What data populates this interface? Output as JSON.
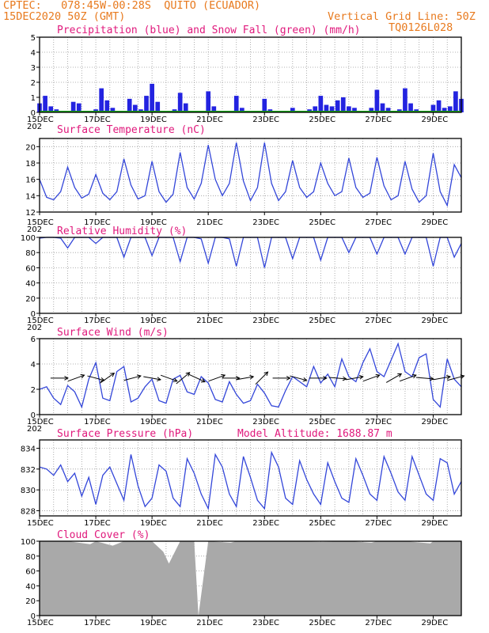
{
  "header": {
    "source": "CPTEC:",
    "location": "078:45W-00:28S  QUITO (ECUADOR)",
    "run": "15DEC2020 50Z (GMT)",
    "grid_note": "Vertical Grid Line: 50Z",
    "code": "TQ0126L028"
  },
  "x_axis": {
    "first_label": "15DEC",
    "labels": [
      "15DEC",
      "17DEC",
      "19DEC",
      "21DEC",
      "23DEC",
      "25DEC",
      "27DEC",
      "29DEC"
    ],
    "year_fragment": "202"
  },
  "colors": {
    "precip": "#2323e0",
    "snow": "#1aa31a",
    "line": "#3346d9",
    "title": "#e0197c",
    "header": "#e87a1e",
    "cloud": "#a9a9a9"
  },
  "chart_data": [
    {
      "type": "bar",
      "title": "Precipitation (blue) and Snow Fall (green) (mm/h)",
      "ylim": [
        0,
        5
      ],
      "yticks": [
        "0",
        "1",
        "2",
        "3",
        "4",
        "5"
      ],
      "x_days": [
        15.0,
        15.2,
        15.4,
        15.6,
        15.8,
        16.0,
        16.2,
        16.4,
        16.6,
        16.8,
        17.0,
        17.2,
        17.4,
        17.6,
        17.8,
        18.0,
        18.2,
        18.4,
        18.6,
        18.8,
        19.0,
        19.2,
        19.4,
        19.6,
        19.8,
        20.0,
        20.2,
        20.4,
        20.6,
        20.8,
        21.0,
        21.2,
        21.4,
        21.6,
        21.8,
        22.0,
        22.2,
        22.4,
        22.6,
        22.8,
        23.0,
        23.2,
        23.4,
        23.6,
        23.8,
        24.0,
        24.2,
        24.4,
        24.6,
        24.8,
        25.0,
        25.2,
        25.4,
        25.6,
        25.8,
        26.0,
        26.2,
        26.4,
        26.6,
        26.8,
        27.0,
        27.2,
        27.4,
        27.6,
        27.8,
        28.0,
        28.2,
        28.4,
        28.6,
        28.8,
        29.0,
        29.2,
        29.4,
        29.6,
        29.8,
        30.0
      ],
      "series": [
        {
          "name": "Precipitation",
          "values": [
            0.6,
            1.1,
            0.4,
            0.2,
            0.0,
            0.1,
            0.7,
            0.6,
            0.1,
            0.0,
            0.2,
            1.6,
            0.8,
            0.3,
            0.0,
            0.1,
            0.9,
            0.5,
            0.2,
            1.1,
            1.9,
            0.7,
            0.1,
            0.0,
            0.2,
            1.3,
            0.6,
            0.1,
            0.0,
            0.1,
            1.4,
            0.4,
            0.1,
            0.0,
            0.1,
            1.1,
            0.3,
            0.0,
            0.0,
            0.1,
            0.9,
            0.2,
            0.0,
            0.0,
            0.1,
            0.3,
            0.1,
            0.0,
            0.2,
            0.4,
            1.1,
            0.5,
            0.4,
            0.8,
            1.0,
            0.4,
            0.3,
            0.1,
            0.0,
            0.3,
            1.5,
            0.6,
            0.3,
            0.1,
            0.2,
            1.6,
            0.6,
            0.2,
            0.1,
            0.0,
            0.5,
            0.8,
            0.3,
            0.4,
            1.4,
            0.9
          ]
        },
        {
          "name": "Snow Fall",
          "values": [
            0,
            0,
            0,
            0,
            0,
            0,
            0,
            0,
            0,
            0,
            0,
            0,
            0,
            0,
            0,
            0,
            0,
            0,
            0,
            0,
            0,
            0,
            0,
            0,
            0,
            0,
            0,
            0,
            0,
            0,
            0,
            0,
            0,
            0,
            0,
            0,
            0,
            0,
            0,
            0,
            0,
            0,
            0,
            0,
            0,
            0,
            0,
            0,
            0,
            0,
            0,
            0,
            0,
            0,
            0,
            0,
            0,
            0,
            0,
            0,
            0,
            0,
            0,
            0,
            0,
            0,
            0,
            0,
            0,
            0,
            0,
            0,
            0,
            0,
            0,
            0
          ]
        }
      ]
    },
    {
      "type": "line",
      "title": "Surface Temperature (nC)",
      "ylim": [
        12,
        21
      ],
      "yticks": [
        "12",
        "14",
        "16",
        "18",
        "20"
      ],
      "x_days": [
        15.0,
        15.25,
        15.5,
        15.75,
        16.0,
        16.25,
        16.5,
        16.75,
        17.0,
        17.25,
        17.5,
        17.75,
        18.0,
        18.25,
        18.5,
        18.75,
        19.0,
        19.25,
        19.5,
        19.75,
        20.0,
        20.25,
        20.5,
        20.75,
        21.0,
        21.25,
        21.5,
        21.75,
        22.0,
        22.25,
        22.5,
        22.75,
        23.0,
        23.25,
        23.5,
        23.75,
        24.0,
        24.25,
        24.5,
        24.75,
        25.0,
        25.25,
        25.5,
        25.75,
        26.0,
        26.25,
        26.5,
        26.75,
        27.0,
        27.25,
        27.5,
        27.75,
        28.0,
        28.25,
        28.5,
        28.75,
        29.0,
        29.25,
        29.5,
        29.75,
        30.0
      ],
      "values": [
        16.0,
        13.8,
        13.5,
        14.5,
        17.5,
        15.0,
        13.7,
        14.2,
        16.6,
        14.3,
        13.5,
        14.5,
        18.5,
        15.3,
        13.6,
        14.0,
        18.2,
        14.5,
        13.2,
        14.2,
        19.3,
        15.0,
        13.6,
        15.5,
        20.2,
        16.0,
        14.0,
        15.5,
        20.5,
        15.8,
        13.4,
        15.0,
        20.5,
        15.5,
        13.4,
        14.5,
        18.3,
        15.0,
        13.8,
        14.5,
        18.0,
        15.5,
        14.0,
        14.5,
        18.6,
        15.0,
        13.8,
        14.3,
        18.7,
        15.2,
        13.5,
        14.0,
        18.2,
        14.8,
        13.2,
        14.0,
        19.2,
        14.5,
        12.8,
        17.8,
        16.2
      ]
    },
    {
      "type": "line",
      "title": "Relative Humidity (%)",
      "ylim": [
        0,
        100
      ],
      "yticks": [
        "0",
        "20",
        "40",
        "60",
        "80",
        "100"
      ],
      "x_days": [
        15.0,
        15.25,
        15.5,
        15.75,
        16.0,
        16.25,
        16.5,
        16.75,
        17.0,
        17.25,
        17.5,
        17.75,
        18.0,
        18.25,
        18.5,
        18.75,
        19.0,
        19.25,
        19.5,
        19.75,
        20.0,
        20.25,
        20.5,
        20.75,
        21.0,
        21.25,
        21.5,
        21.75,
        22.0,
        22.25,
        22.5,
        22.75,
        23.0,
        23.25,
        23.5,
        23.75,
        24.0,
        24.25,
        24.5,
        24.75,
        25.0,
        25.25,
        25.5,
        25.75,
        26.0,
        26.25,
        26.5,
        26.75,
        27.0,
        27.25,
        27.5,
        27.75,
        28.0,
        28.25,
        28.5,
        28.75,
        29.0,
        29.25,
        29.5,
        29.75,
        30.0
      ],
      "values": [
        99,
        100,
        100,
        99,
        86,
        100,
        100,
        100,
        92,
        100,
        100,
        100,
        74,
        100,
        100,
        100,
        76,
        100,
        100,
        100,
        68,
        100,
        100,
        98,
        66,
        100,
        100,
        98,
        62,
        100,
        100,
        100,
        60,
        100,
        100,
        100,
        72,
        100,
        100,
        100,
        70,
        100,
        100,
        100,
        80,
        100,
        100,
        100,
        78,
        100,
        100,
        100,
        78,
        100,
        100,
        100,
        62,
        100,
        100,
        74,
        92
      ]
    },
    {
      "type": "line",
      "title": "Surface Wind (m/s)",
      "ylim": [
        0,
        6
      ],
      "yticks": [
        "0",
        "2",
        "4",
        "6"
      ],
      "x_days": [
        15.0,
        15.25,
        15.5,
        15.75,
        16.0,
        16.25,
        16.5,
        16.75,
        17.0,
        17.25,
        17.5,
        17.75,
        18.0,
        18.25,
        18.5,
        18.75,
        19.0,
        19.25,
        19.5,
        19.75,
        20.0,
        20.25,
        20.5,
        20.75,
        21.0,
        21.25,
        21.5,
        21.75,
        22.0,
        22.25,
        22.5,
        22.75,
        23.0,
        23.25,
        23.5,
        23.75,
        24.0,
        24.25,
        24.5,
        24.75,
        25.0,
        25.25,
        25.5,
        25.75,
        26.0,
        26.25,
        26.5,
        26.75,
        27.0,
        27.25,
        27.5,
        27.75,
        28.0,
        28.25,
        28.5,
        28.75,
        29.0,
        29.25,
        29.5,
        29.75,
        30.0
      ],
      "values": [
        2.0,
        2.2,
        1.3,
        0.8,
        2.3,
        1.8,
        0.6,
        2.8,
        4.1,
        1.3,
        1.1,
        3.4,
        3.8,
        1.0,
        1.3,
        2.2,
        2.8,
        1.1,
        0.9,
        2.8,
        3.1,
        1.8,
        1.6,
        3.0,
        2.5,
        1.2,
        1.0,
        2.6,
        1.6,
        0.9,
        1.1,
        2.4,
        1.7,
        0.7,
        0.6,
        1.9,
        3.0,
        2.6,
        2.2,
        3.8,
        2.5,
        3.2,
        2.2,
        4.4,
        3.0,
        2.6,
        4.1,
        5.2,
        3.4,
        3.0,
        4.3,
        5.6,
        3.4,
        3.0,
        4.5,
        4.8,
        1.2,
        0.6,
        4.4,
        2.8,
        2.2
      ],
      "wind_vectors": [
        {
          "day": 15.7,
          "dir_deg": 0
        },
        {
          "day": 16.3,
          "dir_deg": -20
        },
        {
          "day": 17.0,
          "dir_deg": 15
        },
        {
          "day": 17.4,
          "dir_deg": -35
        },
        {
          "day": 18.3,
          "dir_deg": -15
        },
        {
          "day": 19.0,
          "dir_deg": 10
        },
        {
          "day": 19.6,
          "dir_deg": 20
        },
        {
          "day": 20.1,
          "dir_deg": -40
        },
        {
          "day": 20.6,
          "dir_deg": 25
        },
        {
          "day": 21.3,
          "dir_deg": -20
        },
        {
          "day": 21.8,
          "dir_deg": 0
        },
        {
          "day": 22.3,
          "dir_deg": -10
        },
        {
          "day": 22.9,
          "dir_deg": -45
        },
        {
          "day": 23.6,
          "dir_deg": 0
        },
        {
          "day": 24.2,
          "dir_deg": 15
        },
        {
          "day": 24.9,
          "dir_deg": 0
        },
        {
          "day": 25.6,
          "dir_deg": 5
        },
        {
          "day": 26.2,
          "dir_deg": -10
        },
        {
          "day": 26.8,
          "dir_deg": -20
        },
        {
          "day": 27.6,
          "dir_deg": -30
        },
        {
          "day": 28.1,
          "dir_deg": -20
        },
        {
          "day": 28.7,
          "dir_deg": 5
        },
        {
          "day": 29.3,
          "dir_deg": -10
        },
        {
          "day": 29.8,
          "dir_deg": -15
        }
      ]
    },
    {
      "type": "line",
      "title": "Surface Pressure (hPa)",
      "annotation": "Model Altitude: 1688.87  m",
      "ylim": [
        827.5,
        834.8
      ],
      "yticks": [
        "828",
        "830",
        "832",
        "834"
      ],
      "x_days": [
        15.0,
        15.25,
        15.5,
        15.75,
        16.0,
        16.25,
        16.5,
        16.75,
        17.0,
        17.25,
        17.5,
        17.75,
        18.0,
        18.25,
        18.5,
        18.75,
        19.0,
        19.25,
        19.5,
        19.75,
        20.0,
        20.25,
        20.5,
        20.75,
        21.0,
        21.25,
        21.5,
        21.75,
        22.0,
        22.25,
        22.5,
        22.75,
        23.0,
        23.25,
        23.5,
        23.75,
        24.0,
        24.25,
        24.5,
        24.75,
        25.0,
        25.25,
        25.5,
        25.75,
        26.0,
        26.25,
        26.5,
        26.75,
        27.0,
        27.25,
        27.5,
        27.75,
        28.0,
        28.25,
        28.5,
        28.75,
        29.0,
        29.25,
        29.5,
        29.75,
        30.0
      ],
      "values": [
        832.2,
        832.0,
        831.4,
        832.4,
        830.8,
        831.6,
        829.4,
        831.2,
        828.6,
        831.4,
        832.2,
        830.6,
        829.0,
        833.4,
        830.4,
        828.4,
        829.2,
        832.4,
        831.8,
        829.2,
        828.4,
        833.0,
        831.6,
        829.6,
        828.2,
        833.4,
        832.2,
        829.6,
        828.4,
        833.2,
        831.2,
        829.0,
        828.2,
        833.6,
        832.2,
        829.2,
        828.6,
        832.8,
        831.0,
        829.6,
        828.6,
        832.6,
        830.8,
        829.2,
        828.8,
        833.0,
        831.4,
        829.6,
        829.0,
        833.2,
        831.6,
        829.8,
        829.0,
        833.2,
        831.4,
        829.6,
        829.0,
        833.0,
        832.6,
        829.6,
        830.8
      ]
    },
    {
      "type": "area",
      "title": "Cloud Cover (%)",
      "ylim": [
        0,
        100
      ],
      "yticks": [
        "0",
        "20",
        "40",
        "60",
        "80",
        "100"
      ],
      "x_days": [
        15.0,
        16.0,
        16.8,
        17.0,
        17.6,
        18.0,
        19.0,
        19.4,
        19.6,
        20.0,
        20.5,
        20.65,
        21.0,
        21.8,
        22.0,
        23.0,
        24.0,
        25.0,
        26.0,
        26.8,
        27.0,
        28.0,
        28.9,
        29.0,
        30.0
      ],
      "values": [
        100,
        100,
        96,
        100,
        94,
        100,
        100,
        86,
        70,
        100,
        100,
        0,
        100,
        98,
        100,
        100,
        100,
        99,
        100,
        98,
        100,
        100,
        97,
        100,
        100
      ]
    }
  ]
}
